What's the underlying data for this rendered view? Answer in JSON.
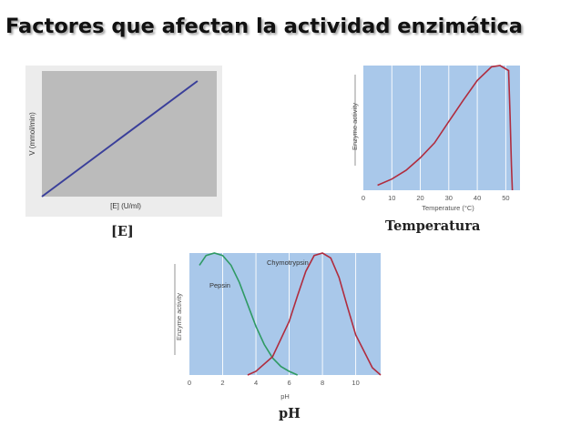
{
  "title": "Factores que afectan la actividad enzimática",
  "captions": {
    "substrate": "[E]",
    "temperature": "Temperatura",
    "ph": "pH"
  },
  "colors": {
    "plot_bg_gray": "#bbbbbb",
    "plot_bg_blue": "#a9c8ea",
    "line_blue": "#3a3f9a",
    "curve_red": "#b02c3e",
    "curve_green": "#2f9a64"
  },
  "chart_data": [
    {
      "type": "line",
      "xlabel": "[E] (U/ml)",
      "ylabel": "V (mmol/min)",
      "xlim": [
        0,
        1
      ],
      "ylim": [
        0,
        1
      ],
      "grid": false,
      "series": [
        {
          "x": [
            0,
            0.89
          ],
          "y": [
            0,
            0.92
          ]
        }
      ]
    },
    {
      "type": "line",
      "xlabel": "Temperature (°C)",
      "ylabel": "Enzyme activity",
      "xlim": [
        0,
        55
      ],
      "ylim": [
        0,
        1
      ],
      "x_ticks": [
        "0",
        "10",
        "20",
        "30",
        "40",
        "50"
      ],
      "grid": true,
      "series": [
        {
          "x": [
            5,
            10,
            15,
            20,
            25,
            30,
            35,
            40,
            45,
            48,
            51,
            51.5,
            52,
            52.3
          ],
          "y": [
            0.04,
            0.09,
            0.16,
            0.26,
            0.38,
            0.55,
            0.72,
            0.88,
            0.99,
            1.0,
            0.96,
            0.6,
            0.2,
            0.0
          ]
        }
      ]
    },
    {
      "type": "line",
      "xlabel": "pH",
      "ylabel": "Enzyme activity",
      "xlim": [
        0,
        11.5
      ],
      "ylim": [
        0,
        1
      ],
      "x_ticks": [
        "0",
        "2",
        "4",
        "6",
        "8",
        "10"
      ],
      "grid": true,
      "series": [
        {
          "name": "Pepsin",
          "x": [
            0.6,
            1,
            1.5,
            2,
            2.5,
            3,
            3.5,
            4,
            4.5,
            5,
            5.5,
            6,
            6.5
          ],
          "y": [
            0.9,
            0.98,
            1.0,
            0.98,
            0.9,
            0.76,
            0.58,
            0.4,
            0.25,
            0.14,
            0.07,
            0.03,
            0.0
          ]
        },
        {
          "name": "Chymotrypsin",
          "x": [
            3.5,
            4,
            5,
            6,
            6.5,
            7,
            7.5,
            8,
            8.5,
            9,
            9.5,
            10,
            11,
            11.5
          ],
          "y": [
            0.0,
            0.03,
            0.15,
            0.44,
            0.65,
            0.85,
            0.98,
            1.0,
            0.96,
            0.8,
            0.56,
            0.33,
            0.06,
            0.0
          ]
        }
      ]
    }
  ]
}
